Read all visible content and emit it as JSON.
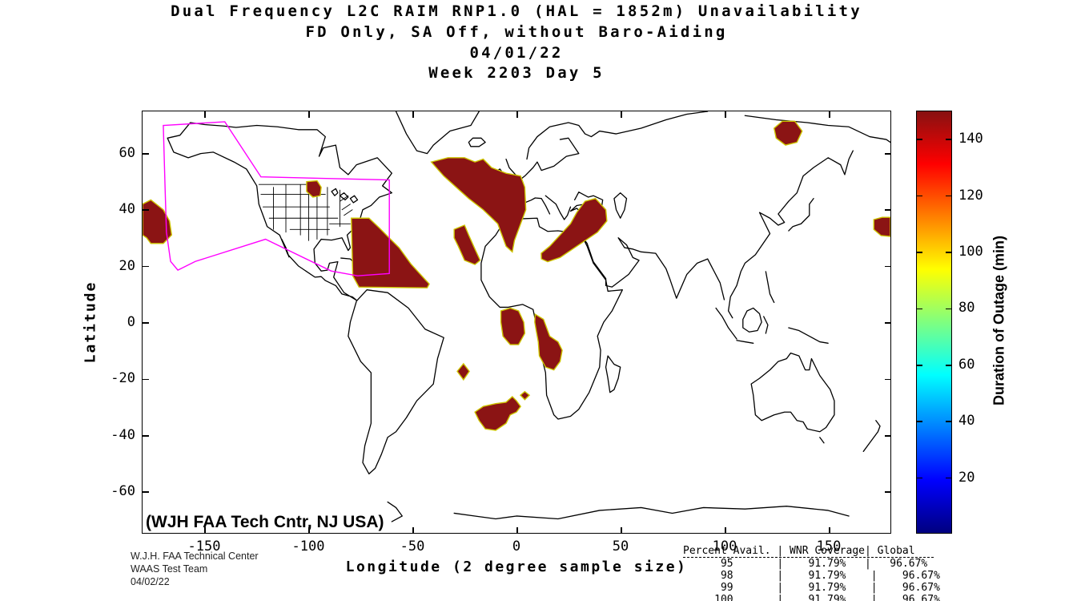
{
  "title": {
    "line1": "Dual Frequency L2C RAIM RNP1.0 (HAL = 1852m) Unavailability",
    "line2": "FD Only, SA Off, without Baro-Aiding",
    "line3": "04/01/22",
    "line4": "Week 2203 Day 5"
  },
  "axes": {
    "xlabel": "Longitude (2 degree sample size)",
    "ylabel": "Latitude",
    "x_ticks": [
      -150,
      -100,
      -50,
      0,
      50,
      100,
      150
    ],
    "y_ticks": [
      60,
      40,
      20,
      0,
      -20,
      -40,
      -60
    ],
    "lon_range": [
      -180,
      180
    ],
    "lat_range": [
      -75,
      75
    ]
  },
  "colorbar": {
    "label": "Duration of Outage (min)",
    "ticks": [
      20,
      40,
      60,
      80,
      100,
      120,
      140
    ],
    "range": [
      0,
      150
    ],
    "colormap": "jet",
    "stops": [
      [
        0,
        "#00007F"
      ],
      [
        0.125,
        "#0000FF"
      ],
      [
        0.375,
        "#00FFFF"
      ],
      [
        0.625,
        "#FFFF00"
      ],
      [
        0.875,
        "#FF0000"
      ],
      [
        1,
        "#871111"
      ]
    ]
  },
  "annotations": {
    "magenta_credit": "(WJH FAA Tech Cntr, NJ USA)",
    "footer_lines": [
      "W.J.H. FAA Technical Center",
      "WAAS Test Team",
      "04/02/22"
    ]
  },
  "stats_table": {
    "columns": [
      "Percent Avail.",
      "WNR Coverage",
      "Global"
    ],
    "rows": [
      [
        "95",
        "91.79%",
        "96.67%"
      ],
      [
        "98",
        "91.79%",
        "96.67%"
      ],
      [
        "99",
        "91.79%",
        "96.67%"
      ],
      [
        "100",
        "91.79%",
        "96.67%"
      ]
    ],
    "lines": [
      "Percent Avail. | WNR Coverage| Global   ",
      "      95       |    91.79%   |   96.67% ",
      "      98       |    91.79%    |    96.67%",
      "      99       |    91.79%    |    96.67%",
      "     100       |    91.79%    |    96.67%"
    ]
  },
  "colors": {
    "outage_fill": "#8B1414",
    "outage_fringe": "#CDC400",
    "waas_magenta": "#FF00FF",
    "coastline": "#000000"
  },
  "chart_data": {
    "type": "map",
    "projection": "equirectangular",
    "value_units": "minutes of outage",
    "outage_value": 150,
    "waas_boundary": [
      [
        -170,
        70
      ],
      [
        -140.4,
        71.3
      ],
      [
        -123,
        51.7
      ],
      [
        -61.2,
        50.6
      ],
      [
        -61.2,
        17.3
      ],
      [
        -76.5,
        16.5
      ],
      [
        -89.2,
        18.2
      ],
      [
        -120.8,
        29.5
      ],
      [
        -154.6,
        21.6
      ],
      [
        -163,
        18.5
      ],
      [
        -166.5,
        21.6
      ],
      [
        -168.5,
        32.1
      ],
      [
        -169.2,
        49.1
      ]
    ],
    "outage_regions": [
      {
        "name": "pacific-off-baja",
        "points": [
          [
            -180,
            42
          ],
          [
            -176,
            43.5
          ],
          [
            -170,
            40
          ],
          [
            -167,
            36
          ],
          [
            -166,
            31
          ],
          [
            -170,
            28
          ],
          [
            -176,
            28
          ],
          [
            -178,
            30
          ],
          [
            -180,
            31
          ]
        ]
      },
      {
        "name": "lake-superior",
        "points": [
          [
            -101,
            50
          ],
          [
            -96,
            50.3
          ],
          [
            -94,
            48
          ],
          [
            -94.5,
            45
          ],
          [
            -98,
            44.5
          ],
          [
            -101,
            46.5
          ]
        ]
      },
      {
        "name": "caribbean-w-atlantic",
        "points": [
          [
            -79.5,
            37
          ],
          [
            -71,
            37
          ],
          [
            -66,
            33.5
          ],
          [
            -62,
            30.5
          ],
          [
            -56.5,
            26.5
          ],
          [
            -50.8,
            20.7
          ],
          [
            -43.8,
            15
          ],
          [
            -42,
            13.6
          ],
          [
            -43,
            12.2
          ],
          [
            -75.8,
            12.5
          ],
          [
            -78.8,
            16.5
          ]
        ]
      },
      {
        "name": "north-atlantic-europe",
        "points": [
          [
            -41,
            57
          ],
          [
            -33,
            58.5
          ],
          [
            -25,
            58.5
          ],
          [
            -20,
            57
          ],
          [
            -16,
            58
          ],
          [
            -12,
            55
          ],
          [
            -5,
            53
          ],
          [
            2,
            52
          ],
          [
            4,
            48
          ],
          [
            4.5,
            40
          ],
          [
            2,
            35
          ],
          [
            -1,
            29
          ],
          [
            -2,
            25
          ],
          [
            -5,
            27
          ],
          [
            -9,
            35
          ],
          [
            -16,
            40
          ],
          [
            -23,
            44
          ],
          [
            -29,
            48
          ],
          [
            -35,
            52
          ]
        ]
      },
      {
        "name": "canary-madeira",
        "points": [
          [
            -30,
            33
          ],
          [
            -25,
            34.5
          ],
          [
            -23,
            31
          ],
          [
            -20,
            26
          ],
          [
            -17.5,
            22
          ],
          [
            -20,
            20.5
          ],
          [
            -25,
            22
          ],
          [
            -28,
            27
          ],
          [
            -30,
            30
          ]
        ]
      },
      {
        "name": "middle-east",
        "points": [
          [
            11.9,
            24.5
          ],
          [
            16,
            27
          ],
          [
            21,
            31
          ],
          [
            26,
            35
          ],
          [
            29,
            39
          ],
          [
            33,
            43
          ],
          [
            38,
            44
          ],
          [
            43,
            40
          ],
          [
            43.5,
            36
          ],
          [
            39,
            32
          ],
          [
            33,
            29
          ],
          [
            27,
            26
          ],
          [
            21,
            23
          ],
          [
            15,
            21.5
          ],
          [
            12,
            22.5
          ]
        ]
      },
      {
        "name": "gulf-of-guinea",
        "points": [
          [
            -7.5,
            4
          ],
          [
            -3,
            5
          ],
          [
            1,
            4
          ],
          [
            3.5,
            0
          ],
          [
            4,
            -4
          ],
          [
            1,
            -8
          ],
          [
            -3,
            -8
          ],
          [
            -6.5,
            -5
          ],
          [
            -7.5,
            0
          ]
        ]
      },
      {
        "name": "angola-coast",
        "points": [
          [
            9,
            2.8
          ],
          [
            13,
            1
          ],
          [
            14.5,
            -2
          ],
          [
            16,
            -5
          ],
          [
            20,
            -7
          ],
          [
            22,
            -10
          ],
          [
            21,
            -14
          ],
          [
            18,
            -17
          ],
          [
            14,
            -16
          ],
          [
            11,
            -12
          ],
          [
            10.5,
            -7
          ],
          [
            9.5,
            -3
          ],
          [
            8.8,
            0
          ]
        ]
      },
      {
        "name": "s-atlantic-diamond",
        "points": [
          [
            -25.5,
            -14.8
          ],
          [
            -22.7,
            -17.5
          ],
          [
            -25.5,
            -20.5
          ],
          [
            -28.5,
            -17.5
          ]
        ]
      },
      {
        "name": "south-atlantic-blob",
        "points": [
          [
            -20,
            -32
          ],
          [
            -16,
            -30
          ],
          [
            -10,
            -29
          ],
          [
            -5,
            -28.5
          ],
          [
            -2,
            -26.5
          ],
          [
            0,
            -28
          ],
          [
            2,
            -30
          ],
          [
            0,
            -32
          ],
          [
            -3,
            -33
          ],
          [
            -5,
            -36
          ],
          [
            -10,
            -38.5
          ],
          [
            -15,
            -38
          ],
          [
            -18,
            -35
          ]
        ]
      },
      {
        "name": "s-atlantic-diamond2",
        "points": [
          [
            4,
            -24.7
          ],
          [
            6.2,
            -26
          ],
          [
            4,
            -27.6
          ],
          [
            1.9,
            -26
          ]
        ]
      },
      {
        "name": "ne-russia",
        "points": [
          [
            124,
            69
          ],
          [
            128,
            71.5
          ],
          [
            134,
            71.5
          ],
          [
            137.5,
            68
          ],
          [
            135,
            64
          ],
          [
            129.5,
            63
          ],
          [
            125,
            65.5
          ]
        ]
      },
      {
        "name": "w-pacific-edge",
        "points": [
          [
            172,
            36.5
          ],
          [
            176,
            37.3
          ],
          [
            180,
            37.3
          ],
          [
            180,
            30.5
          ],
          [
            175.5,
            30.8
          ],
          [
            172,
            33
          ]
        ]
      }
    ]
  }
}
